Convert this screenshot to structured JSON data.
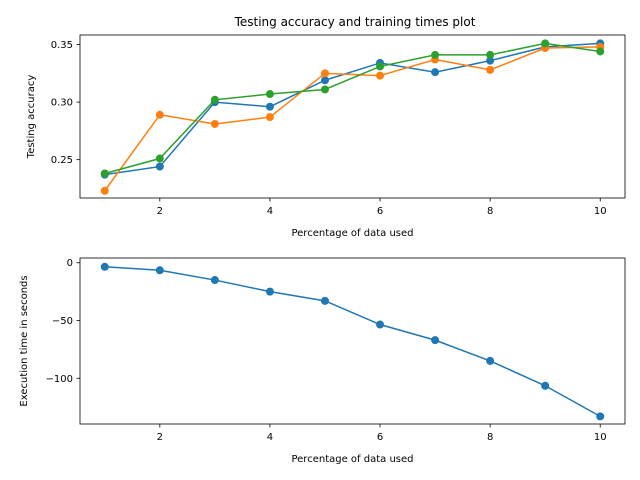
{
  "title": "Testing accuracy and training times plot",
  "colors": {
    "blue": "#1f77b4",
    "orange": "#ff7f0e",
    "green": "#2ca02c"
  },
  "chart_data": [
    {
      "type": "line",
      "title": "Testing accuracy and training times plot",
      "xlabel": "Percentage of data used",
      "ylabel": "Testing accuracy",
      "x": [
        1,
        2,
        3,
        4,
        5,
        6,
        7,
        8,
        9,
        10
      ],
      "xlim": [
        0.55,
        10.45
      ],
      "ylim": [
        0.2167,
        0.3583
      ],
      "xticks": [
        2,
        4,
        6,
        8,
        10
      ],
      "yticks": [
        0.25,
        0.3,
        0.35
      ],
      "ytick_labels": [
        "0.25",
        "0.30",
        "0.35"
      ],
      "marker": "circle",
      "grid": false,
      "series": [
        {
          "color": "#1f77b4",
          "values": [
            0.237,
            0.244,
            0.3,
            0.296,
            0.319,
            0.334,
            0.326,
            0.336,
            0.348,
            0.351
          ]
        },
        {
          "color": "#ff7f0e",
          "values": [
            0.223,
            0.289,
            0.281,
            0.287,
            0.325,
            0.323,
            0.337,
            0.328,
            0.347,
            0.348
          ]
        },
        {
          "color": "#2ca02c",
          "values": [
            0.238,
            0.251,
            0.302,
            0.307,
            0.311,
            0.331,
            0.341,
            0.341,
            0.351,
            0.344
          ]
        }
      ]
    },
    {
      "type": "line",
      "title": "",
      "xlabel": "Percentage of data used",
      "ylabel": "Execution time in seconds",
      "x": [
        1,
        2,
        3,
        4,
        5,
        6,
        7,
        8,
        9,
        10
      ],
      "xlim": [
        0.55,
        10.45
      ],
      "ylim": [
        -139.6,
        4.1
      ],
      "xticks": [
        2,
        4,
        6,
        8,
        10
      ],
      "yticks": [
        0,
        -50,
        -100
      ],
      "ytick_labels": [
        "0",
        "−50",
        "−100"
      ],
      "marker": "circle",
      "grid": false,
      "series": [
        {
          "color": "#1f77b4",
          "values": [
            -3.5,
            -6.5,
            -15,
            -25,
            -33,
            -53.5,
            -67,
            -85,
            -106.5,
            -133
          ]
        }
      ]
    }
  ]
}
